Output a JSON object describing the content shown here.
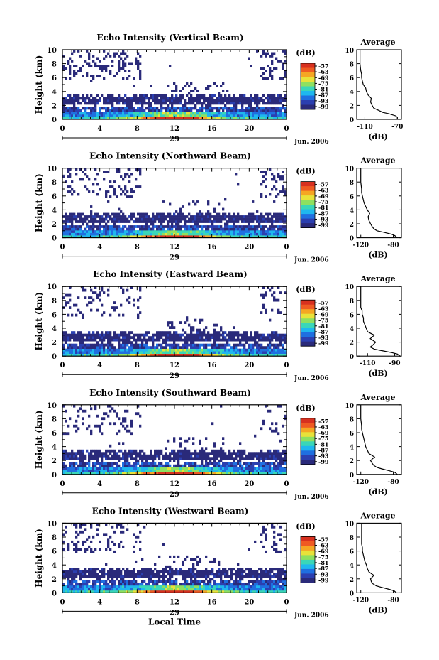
{
  "chart_data": [
    {
      "type": "heatmap",
      "title": "Echo Intensity (Vertical Beam)",
      "ylabel": "Height (km)",
      "yticks": [
        "0",
        "2",
        "4",
        "6",
        "8",
        "10"
      ],
      "xticks": [
        "0",
        "4",
        "8",
        "12",
        "16",
        "20",
        "0"
      ],
      "date_day": "29",
      "date_month": "Jun. 2006",
      "colorbar_unit": "(dB)",
      "colorbar_ticks": [
        "-57",
        "-63",
        "-69",
        "-75",
        "-81",
        "-87",
        "-93",
        "-99"
      ],
      "clear_fraction": 0.3,
      "upper_cloud_fraction": 0.55,
      "average_profile": {
        "title": "Average",
        "xlabel": "(dB)",
        "xticks": [
          "-110",
          "-70"
        ],
        "xlim": [
          -120,
          -65
        ],
        "heights_km": [
          0,
          0.3,
          0.5,
          0.8,
          1.0,
          1.3,
          1.6,
          2.0,
          2.5,
          3.0,
          3.5,
          4.0,
          4.5,
          5.0,
          5.5,
          6.0,
          6.5,
          7.0,
          8.0,
          9.0,
          10.0
        ],
        "values_db": [
          -70,
          -70,
          -72,
          -80,
          -88,
          -93,
          -99,
          -101,
          -103,
          -102,
          -106,
          -108,
          -109,
          -112,
          -113,
          -114,
          -114,
          -115,
          -116,
          -116,
          -116
        ]
      }
    },
    {
      "type": "heatmap",
      "title": "Echo Intensity (Northward Beam)",
      "ylabel": "Height (km)",
      "yticks": [
        "0",
        "2",
        "4",
        "6",
        "8",
        "10"
      ],
      "xticks": [
        "0",
        "4",
        "8",
        "12",
        "16",
        "20",
        "0"
      ],
      "date_day": "29",
      "date_month": "Jun. 2006",
      "colorbar_unit": "(dB)",
      "colorbar_ticks": [
        "-57",
        "-63",
        "-69",
        "-75",
        "-81",
        "-87",
        "-93",
        "-99"
      ],
      "clear_fraction": 0.38,
      "upper_cloud_fraction": 0.4,
      "average_profile": {
        "title": "Average",
        "xlabel": "(dB)",
        "xticks": [
          "-120",
          "-80"
        ],
        "xlim": [
          -125,
          -70
        ],
        "heights_km": [
          0,
          0.3,
          0.5,
          0.8,
          1.0,
          1.3,
          1.6,
          2.0,
          2.5,
          3.0,
          3.5,
          4.0,
          4.5,
          5.0,
          5.5,
          6.0,
          6.5,
          7.0,
          8.0,
          9.0,
          10.0
        ],
        "values_db": [
          -75,
          -78,
          -82,
          -92,
          -100,
          -104,
          -106,
          -108,
          -110,
          -111,
          -109,
          -112,
          -114,
          -116,
          -117,
          -118,
          -119,
          -119,
          -120,
          -120,
          -120
        ]
      }
    },
    {
      "type": "heatmap",
      "title": "Echo Intensity (Eastward Beam)",
      "ylabel": "Height (km)",
      "yticks": [
        "0",
        "2",
        "4",
        "6",
        "8",
        "10"
      ],
      "xticks": [
        "0",
        "4",
        "8",
        "12",
        "16",
        "20",
        "0"
      ],
      "date_day": "29",
      "date_month": "Jun. 2006",
      "colorbar_unit": "(dB)",
      "colorbar_ticks": [
        "-57",
        "-63",
        "-69",
        "-75",
        "-81",
        "-87",
        "-93",
        "-99"
      ],
      "clear_fraction": 0.46,
      "upper_cloud_fraction": 0.3,
      "average_profile": {
        "title": "Average",
        "xlabel": "(dB)",
        "xticks": [
          "-110",
          "-90"
        ],
        "xlim": [
          -118,
          -85
        ],
        "heights_km": [
          0,
          0.3,
          0.5,
          0.8,
          1.0,
          1.3,
          1.6,
          2.0,
          2.5,
          3.0,
          3.5,
          4.0,
          4.5,
          5.0,
          5.5,
          6.0,
          6.5,
          7.0,
          8.0,
          9.0,
          10.0
        ],
        "values_db": [
          -86,
          -88,
          -92,
          -100,
          -105,
          -108,
          -106,
          -104,
          -108,
          -105,
          -110,
          -111,
          -112,
          -113,
          -113,
          -114,
          -114,
          -115,
          -115,
          -115,
          -115
        ]
      }
    },
    {
      "type": "heatmap",
      "title": "Echo Intensity (Southward Beam)",
      "ylabel": "Height (km)",
      "yticks": [
        "0",
        "2",
        "4",
        "6",
        "8",
        "10"
      ],
      "xticks": [
        "0",
        "4",
        "8",
        "12",
        "16",
        "20",
        "0"
      ],
      "date_day": "29",
      "date_month": "Jun. 2006",
      "colorbar_unit": "(dB)",
      "colorbar_ticks": [
        "-57",
        "-63",
        "-69",
        "-75",
        "-81",
        "-87",
        "-93",
        "-99"
      ],
      "clear_fraction": 0.54,
      "upper_cloud_fraction": 0.3,
      "average_profile": {
        "title": "Average",
        "xlabel": "(dB)",
        "xticks": [
          "-120",
          "-80"
        ],
        "xlim": [
          -125,
          -70
        ],
        "heights_km": [
          0,
          0.3,
          0.5,
          0.8,
          1.0,
          1.3,
          1.6,
          2.0,
          2.5,
          3.0,
          3.5,
          4.0,
          4.5,
          5.0,
          5.5,
          6.0,
          6.5,
          7.0,
          8.0,
          9.0,
          10.0
        ],
        "values_db": [
          -75,
          -78,
          -84,
          -94,
          -100,
          -104,
          -106,
          -108,
          -103,
          -110,
          -112,
          -114,
          -115,
          -116,
          -117,
          -118,
          -119,
          -119,
          -120,
          -120,
          -120
        ]
      }
    },
    {
      "type": "heatmap",
      "title": "Echo Intensity (Westward Beam)",
      "ylabel": "Height (km)",
      "yticks": [
        "0",
        "2",
        "4",
        "6",
        "8",
        "10"
      ],
      "xticks": [
        "0",
        "4",
        "8",
        "12",
        "16",
        "20",
        "0"
      ],
      "date_day": "29",
      "date_month": "Jun. 2006",
      "xlabel": "Local Time",
      "colorbar_unit": "(dB)",
      "colorbar_ticks": [
        "-57",
        "-63",
        "-69",
        "-75",
        "-81",
        "-87",
        "-93",
        "-99"
      ],
      "clear_fraction": 0.62,
      "upper_cloud_fraction": 0.45,
      "average_profile": {
        "title": "Average",
        "xlabel": "(dB)",
        "xticks": [
          "-120",
          "-80"
        ],
        "xlim": [
          -125,
          -70
        ],
        "heights_km": [
          0,
          0.3,
          0.5,
          0.8,
          1.0,
          1.3,
          1.6,
          2.0,
          2.5,
          3.0,
          3.5,
          4.0,
          4.5,
          5.0,
          5.5,
          6.0,
          6.5,
          7.0,
          8.0,
          9.0,
          10.0
        ],
        "values_db": [
          -76,
          -79,
          -85,
          -95,
          -101,
          -105,
          -107,
          -108,
          -104,
          -110,
          -112,
          -113,
          -115,
          -116,
          -117,
          -118,
          -118,
          -119,
          -119,
          -119,
          -119
        ]
      }
    }
  ],
  "colormap": [
    "#2a2a7a",
    "#2b3fb0",
    "#1f6fe0",
    "#1fb7ee",
    "#3ad6b8",
    "#8ee060",
    "#e8e23a",
    "#f5a623",
    "#ef5a22",
    "#d7301f"
  ]
}
